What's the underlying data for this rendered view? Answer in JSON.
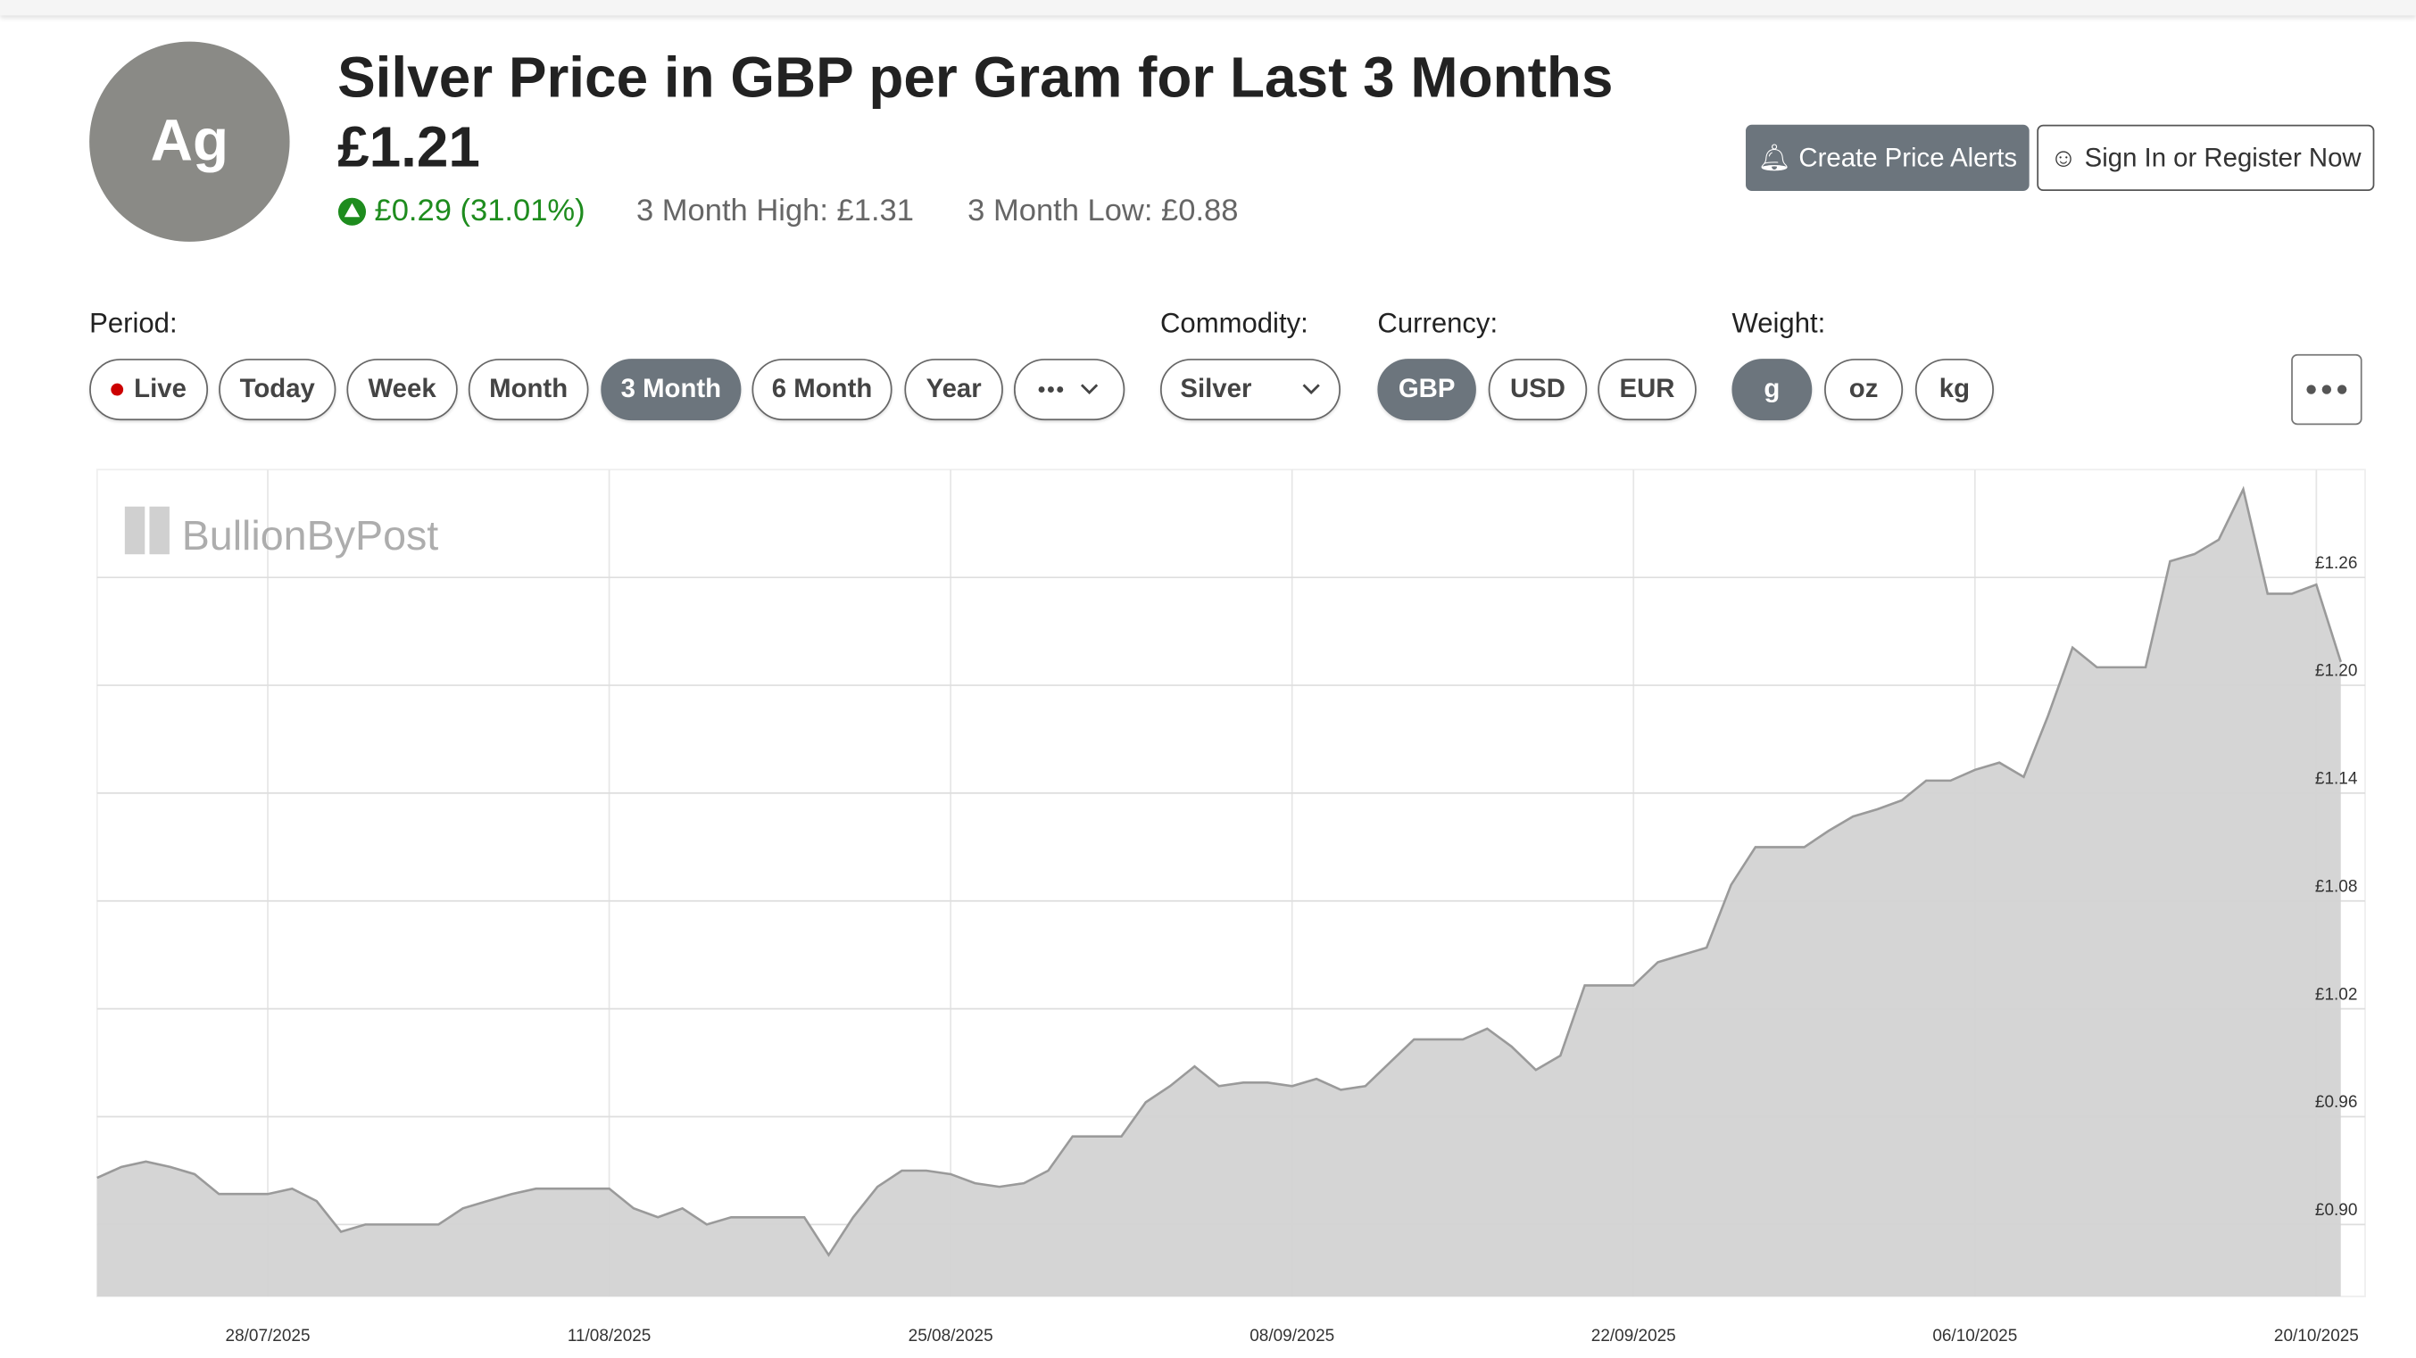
{
  "header": {
    "avatar": "Ag",
    "title": "Silver Price in GBP per Gram for Last 3 Months",
    "price": "£1.21",
    "change": "£0.29 (31.01%)",
    "high": "3 Month High: £1.31",
    "low": "3 Month Low: £0.88"
  },
  "buttons": {
    "alerts": "Create Price Alerts",
    "signin": "Sign In or Register Now"
  },
  "controls": {
    "period": {
      "label": "Period:",
      "options": [
        "Live",
        "Today",
        "Week",
        "Month",
        "3 Month",
        "6 Month",
        "Year"
      ]
    },
    "commodity": {
      "label": "Commodity:",
      "value": "Silver"
    },
    "currency": {
      "label": "Currency:",
      "options": [
        "GBP",
        "USD",
        "EUR"
      ]
    },
    "weight": {
      "label": "Weight:",
      "options": [
        "g",
        "oz",
        "kg"
      ]
    }
  },
  "chart_data": {
    "type": "area",
    "watermark": "BullionByPost",
    "color": "#d3d3d3",
    "line_color": "#9a9a9a",
    "grid": true,
    "x": [
      "21/07/2025",
      "22/07/2025",
      "23/07/2025",
      "24/07/2025",
      "25/07/2025",
      "26/07/2025",
      "27/07/2025",
      "28/07/2025",
      "29/07/2025",
      "30/07/2025",
      "31/07/2025",
      "01/08/2025",
      "02/08/2025",
      "03/08/2025",
      "04/08/2025",
      "05/08/2025",
      "06/08/2025",
      "07/08/2025",
      "08/08/2025",
      "09/08/2025",
      "10/08/2025",
      "11/08/2025",
      "12/08/2025",
      "13/08/2025",
      "14/08/2025",
      "15/08/2025",
      "16/08/2025",
      "17/08/2025",
      "18/08/2025",
      "19/08/2025",
      "20/08/2025",
      "21/08/2025",
      "22/08/2025",
      "23/08/2025",
      "24/08/2025",
      "25/08/2025",
      "26/08/2025",
      "27/08/2025",
      "28/08/2025",
      "29/08/2025",
      "30/08/2025",
      "31/08/2025",
      "01/09/2025",
      "02/09/2025",
      "03/09/2025",
      "04/09/2025",
      "05/09/2025",
      "06/09/2025",
      "07/09/2025",
      "08/09/2025",
      "09/09/2025",
      "10/09/2025",
      "11/09/2025",
      "12/09/2025",
      "13/09/2025",
      "14/09/2025",
      "15/09/2025",
      "16/09/2025",
      "17/09/2025",
      "18/09/2025",
      "19/09/2025",
      "20/09/2025",
      "21/09/2025",
      "22/09/2025",
      "23/09/2025",
      "24/09/2025",
      "25/09/2025",
      "26/09/2025",
      "27/09/2025",
      "28/09/2025",
      "29/09/2025",
      "30/09/2025",
      "01/10/2025",
      "02/10/2025",
      "03/10/2025",
      "04/10/2025",
      "05/10/2025",
      "06/10/2025",
      "07/10/2025",
      "08/10/2025",
      "09/10/2025",
      "10/10/2025",
      "11/10/2025",
      "12/10/2025",
      "13/10/2025",
      "14/10/2025",
      "15/10/2025",
      "16/10/2025",
      "17/10/2025",
      "18/10/2025",
      "19/10/2025",
      "20/10/2025",
      "21/10/2025"
    ],
    "values": [
      0.926,
      0.932,
      0.935,
      0.932,
      0.928,
      0.917,
      0.917,
      0.917,
      0.92,
      0.913,
      0.896,
      0.9,
      0.9,
      0.9,
      0.9,
      0.909,
      0.913,
      0.917,
      0.92,
      0.92,
      0.92,
      0.92,
      0.909,
      0.904,
      0.909,
      0.9,
      0.904,
      0.904,
      0.904,
      0.904,
      0.883,
      0.904,
      0.921,
      0.93,
      0.93,
      0.928,
      0.923,
      0.921,
      0.923,
      0.93,
      0.949,
      0.949,
      0.949,
      0.968,
      0.977,
      0.988,
      0.977,
      0.979,
      0.979,
      0.977,
      0.981,
      0.975,
      0.977,
      0.99,
      1.003,
      1.003,
      1.003,
      1.009,
      0.999,
      0.986,
      0.994,
      1.033,
      1.033,
      1.033,
      1.046,
      1.05,
      1.054,
      1.089,
      1.11,
      1.11,
      1.11,
      1.119,
      1.127,
      1.131,
      1.136,
      1.147,
      1.147,
      1.153,
      1.157,
      1.149,
      1.183,
      1.221,
      1.21,
      1.21,
      1.21,
      1.269,
      1.273,
      1.281,
      1.309,
      1.251,
      1.251,
      1.256,
      1.213
    ],
    "xlim": [
      "21/07/2025",
      "22/10/2025"
    ],
    "xticks": [
      "28/07/2025",
      "11/08/2025",
      "25/08/2025",
      "08/09/2025",
      "22/09/2025",
      "06/10/2025",
      "20/10/2025"
    ],
    "ylim": [
      0.86,
      1.32
    ],
    "yticks": [
      {
        "value": 0.9,
        "label": "£0.90"
      },
      {
        "value": 0.96,
        "label": "£0.96"
      },
      {
        "value": 1.02,
        "label": "£1.02"
      },
      {
        "value": 1.08,
        "label": "£1.08"
      },
      {
        "value": 1.14,
        "label": "£1.14"
      },
      {
        "value": 1.2,
        "label": "£1.20"
      },
      {
        "value": 1.26,
        "label": "£1.26"
      }
    ]
  }
}
